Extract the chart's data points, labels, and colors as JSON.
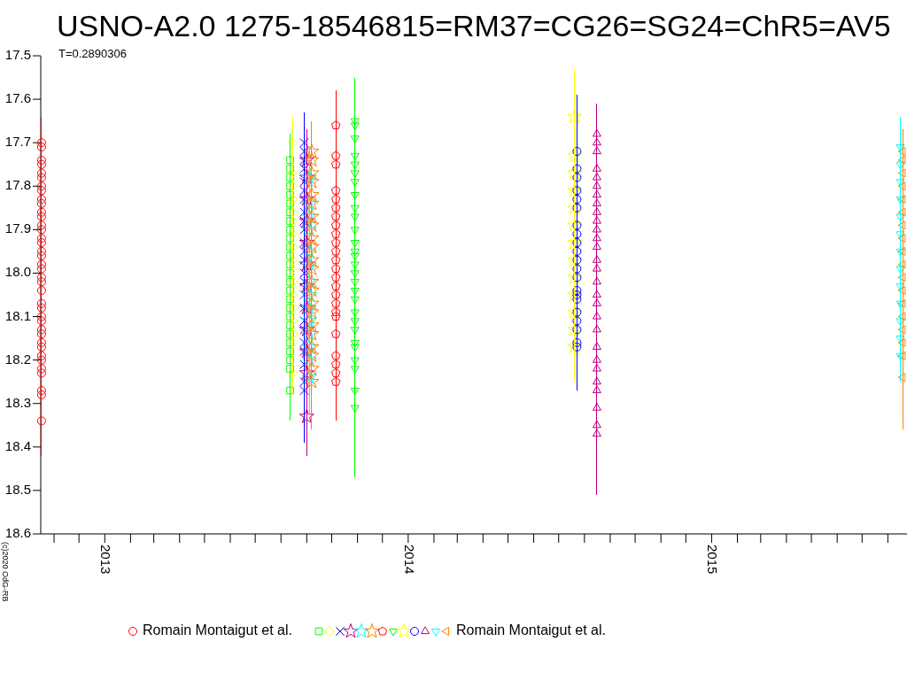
{
  "chart_data": {
    "type": "scatter",
    "title": "USNO-A2.0 1275-18546815=RM37=CG26=SG24=ChR5=AV5",
    "subtitle": "T=0.2890306",
    "annotations": [
      "(c)2020 OdG-RB"
    ],
    "legend": "bottom",
    "xlim": [
      "2012-10-16",
      "2015-08-24"
    ],
    "xticks": [
      {
        "value": "2012-11",
        "label": null
      },
      {
        "value": "2012-12",
        "label": null
      },
      "2013",
      {
        "value": "2013-02",
        "label": null
      },
      {
        "value": "2013-03",
        "label": null
      },
      {
        "value": "2013-04",
        "label": null
      },
      {
        "value": "2013-05",
        "label": null
      },
      {
        "value": "2013-06",
        "label": null
      },
      {
        "value": "2013-07",
        "label": null
      },
      {
        "value": "2013-08",
        "label": null
      },
      {
        "value": "2013-09",
        "label": null
      },
      {
        "value": "2013-10",
        "label": null
      },
      {
        "value": "2013-11",
        "label": null
      },
      {
        "value": "2013-12",
        "label": null
      },
      "2014",
      {
        "value": "2014-02",
        "label": null
      },
      {
        "value": "2014-03",
        "label": null
      },
      {
        "value": "2014-04",
        "label": null
      },
      {
        "value": "2014-05",
        "label": null
      },
      {
        "value": "2014-06",
        "label": null
      },
      {
        "value": "2014-07",
        "label": null
      },
      {
        "value": "2014-08",
        "label": null
      },
      {
        "value": "2014-09",
        "label": null
      },
      {
        "value": "2014-10",
        "label": null
      },
      {
        "value": "2014-11",
        "label": null
      },
      {
        "value": "2014-12",
        "label": null
      },
      "2015",
      {
        "value": "2015-02",
        "label": null
      },
      {
        "value": "2015-03",
        "label": null
      },
      {
        "value": "2015-04",
        "label": null
      },
      {
        "value": "2015-05",
        "label": null
      },
      {
        "value": "2015-06",
        "label": null
      },
      {
        "value": "2015-07",
        "label": null
      },
      {
        "value": "2015-08",
        "label": null
      }
    ],
    "ylim": [
      18.6,
      17.5
    ],
    "yticks": [
      17.5,
      17.6,
      17.7,
      17.8,
      17.9,
      {
        "value": 18,
        "label": "18.0"
      },
      18.1,
      18.2,
      18.3,
      18.4,
      18.5,
      18.6
    ],
    "series": [
      {
        "name": "Romain Montaigut et al.",
        "color": "#ff0000",
        "marker": "circle",
        "x": [
          "2012-10-17",
          "2012-10-17",
          "2012-10-17",
          "2012-10-17",
          "2012-10-17",
          "2012-10-17",
          "2012-10-17",
          "2012-10-17",
          "2012-10-17",
          "2012-10-17",
          "2012-10-17",
          "2012-10-17",
          "2012-10-17",
          "2012-10-17",
          "2012-10-17",
          "2012-10-17",
          "2012-10-17",
          "2012-10-17",
          "2012-10-17",
          "2012-10-17",
          "2012-10-17",
          "2012-10-17",
          "2012-10-17",
          "2012-10-17",
          "2012-10-17",
          "2012-10-17",
          "2012-10-17",
          "2012-10-17",
          "2012-10-17",
          "2012-10-17",
          "2012-10-17",
          "2012-10-17",
          "2012-10-17",
          "2012-10-17",
          "2012-10-17",
          "2012-10-17",
          "2012-10-17",
          "2012-10-17"
        ],
        "values": [
          17.7,
          17.71,
          17.74,
          17.75,
          17.77,
          17.78,
          17.8,
          17.81,
          17.83,
          17.84,
          17.86,
          17.87,
          17.89,
          17.9,
          17.92,
          17.93,
          17.95,
          17.96,
          17.98,
          17.99,
          18.01,
          18.02,
          18.04,
          18.07,
          18.08,
          18.1,
          18.11,
          18.13,
          18.14,
          18.16,
          18.17,
          18.19,
          18.2,
          18.22,
          18.23,
          18.27,
          18.28,
          18.34
        ],
        "errors": [
          0.06,
          0.05,
          0.05,
          0.05,
          0.05,
          0.05,
          0.05,
          0.05,
          0.05,
          0.05,
          0.05,
          0.05,
          0.05,
          0.05,
          0.05,
          0.05,
          0.05,
          0.05,
          0.05,
          0.05,
          0.05,
          0.05,
          0.05,
          0.05,
          0.05,
          0.05,
          0.05,
          0.05,
          0.05,
          0.05,
          0.05,
          0.05,
          0.05,
          0.05,
          0.05,
          0.05,
          0.05,
          0.08
        ]
      },
      {
        "color": "#00ff00",
        "marker": "square",
        "x": [
          "2013-08-12",
          "2013-08-12",
          "2013-08-12",
          "2013-08-12",
          "2013-08-12",
          "2013-08-12",
          "2013-08-12",
          "2013-08-12",
          "2013-08-12",
          "2013-08-12",
          "2013-08-12",
          "2013-08-12",
          "2013-08-12",
          "2013-08-12",
          "2013-08-12",
          "2013-08-12",
          "2013-08-12",
          "2013-08-12",
          "2013-08-12",
          "2013-08-12",
          "2013-08-12",
          "2013-08-12",
          "2013-08-12",
          "2013-08-12",
          "2013-08-12",
          "2013-08-12"
        ],
        "values": [
          17.74,
          17.76,
          17.78,
          17.8,
          17.82,
          17.84,
          17.86,
          17.88,
          17.9,
          17.92,
          17.94,
          17.96,
          17.98,
          18.0,
          18.02,
          18.04,
          18.06,
          18.08,
          18.1,
          18.12,
          18.14,
          18.16,
          18.18,
          18.2,
          18.22,
          18.27
        ],
        "errors": [
          0.06,
          0.05,
          0.05,
          0.05,
          0.05,
          0.05,
          0.05,
          0.05,
          0.05,
          0.05,
          0.05,
          0.05,
          0.05,
          0.05,
          0.05,
          0.05,
          0.05,
          0.05,
          0.05,
          0.05,
          0.05,
          0.05,
          0.05,
          0.05,
          0.05,
          0.07
        ]
      },
      {
        "color": "#ffff00",
        "marker": "diamond",
        "x": [
          "2013-08-15",
          "2013-08-15",
          "2013-08-15",
          "2013-08-15",
          "2013-08-15",
          "2013-08-15",
          "2013-08-15",
          "2013-08-15",
          "2013-08-15",
          "2013-08-15",
          "2013-08-15",
          "2013-08-15",
          "2013-08-15",
          "2013-08-15",
          "2013-08-15",
          "2013-08-15",
          "2013-08-15"
        ],
        "values": [
          17.7,
          17.77,
          17.8,
          17.83,
          17.86,
          17.88,
          17.91,
          17.94,
          17.97,
          17.99,
          18.02,
          18.05,
          18.08,
          18.11,
          18.14,
          18.16,
          18.23
        ],
        "errors": [
          0.06,
          0.05,
          0.05,
          0.05,
          0.05,
          0.05,
          0.05,
          0.05,
          0.05,
          0.05,
          0.05,
          0.05,
          0.05,
          0.05,
          0.05,
          0.05,
          0.05
        ]
      },
      {
        "color": "#0000ff",
        "marker": "cross",
        "x": [
          "2013-08-29",
          "2013-08-29",
          "2013-08-29",
          "2013-08-29",
          "2013-08-29",
          "2013-08-29",
          "2013-08-29",
          "2013-08-29",
          "2013-08-29",
          "2013-08-29",
          "2013-08-29",
          "2013-08-29",
          "2013-08-29",
          "2013-08-29",
          "2013-08-29",
          "2013-08-29",
          "2013-08-29",
          "2013-08-29",
          "2013-08-29",
          "2013-08-29",
          "2013-08-29",
          "2013-08-29",
          "2013-08-29",
          "2013-08-29"
        ],
        "values": [
          17.7,
          17.72,
          17.74,
          17.76,
          17.79,
          17.81,
          17.83,
          17.86,
          17.88,
          17.9,
          17.93,
          17.95,
          17.97,
          18.0,
          18.02,
          18.05,
          18.08,
          18.11,
          18.13,
          18.16,
          18.18,
          18.21,
          18.25,
          18.27
        ],
        "errors": [
          0.07,
          0.05,
          0.05,
          0.05,
          0.05,
          0.05,
          0.05,
          0.05,
          0.05,
          0.05,
          0.05,
          0.05,
          0.05,
          0.05,
          0.05,
          0.05,
          0.05,
          0.05,
          0.05,
          0.05,
          0.05,
          0.05,
          0.05,
          0.12
        ]
      },
      {
        "color": "#bf0080",
        "marker": "star",
        "x": [
          "2013-09-01",
          "2013-09-01",
          "2013-09-01",
          "2013-09-01",
          "2013-09-01",
          "2013-09-01",
          "2013-09-01",
          "2013-09-01",
          "2013-09-01",
          "2013-09-01",
          "2013-09-01",
          "2013-09-01"
        ],
        "values": [
          17.74,
          17.78,
          17.83,
          17.88,
          17.93,
          17.98,
          18.03,
          18.08,
          18.13,
          18.18,
          18.23,
          18.33
        ],
        "errors": [
          0.07,
          0.05,
          0.05,
          0.05,
          0.05,
          0.05,
          0.05,
          0.05,
          0.05,
          0.05,
          0.05,
          0.09
        ]
      },
      {
        "color": "#00ffff",
        "marker": "star",
        "x": [
          "2013-09-04",
          "2013-09-04",
          "2013-09-04",
          "2013-09-04",
          "2013-09-04",
          "2013-09-04",
          "2013-09-04",
          "2013-09-04",
          "2013-09-04",
          "2013-09-04",
          "2013-09-04",
          "2013-09-04",
          "2013-09-04",
          "2013-09-04"
        ],
        "values": [
          17.78,
          17.84,
          17.87,
          17.9,
          17.95,
          17.98,
          18.02,
          18.05,
          18.08,
          18.11,
          18.14,
          18.17,
          18.2,
          18.24
        ],
        "errors": [
          0.07,
          0.05,
          0.05,
          0.05,
          0.05,
          0.05,
          0.05,
          0.05,
          0.05,
          0.05,
          0.05,
          0.05,
          0.05,
          0.08
        ]
      },
      {
        "color": "#ff8000",
        "marker": "star",
        "x": [
          "2013-09-07",
          "2013-09-07",
          "2013-09-07",
          "2013-09-07",
          "2013-09-07",
          "2013-09-07",
          "2013-09-07",
          "2013-09-07",
          "2013-09-07",
          "2013-09-07",
          "2013-09-07",
          "2013-09-07",
          "2013-09-07",
          "2013-09-07",
          "2013-09-07",
          "2013-09-07",
          "2013-09-07",
          "2013-09-07",
          "2013-09-07",
          "2013-09-07",
          "2013-09-07",
          "2013-09-07"
        ],
        "values": [
          17.72,
          17.74,
          17.77,
          17.79,
          17.82,
          17.84,
          17.87,
          17.89,
          17.92,
          17.94,
          17.97,
          17.99,
          18.02,
          18.04,
          18.07,
          18.09,
          18.12,
          18.14,
          18.17,
          18.19,
          18.22,
          18.25
        ],
        "errors": [
          0.07,
          0.05,
          0.05,
          0.05,
          0.05,
          0.05,
          0.05,
          0.05,
          0.05,
          0.05,
          0.05,
          0.05,
          0.05,
          0.05,
          0.05,
          0.05,
          0.05,
          0.05,
          0.05,
          0.05,
          0.05,
          0.11
        ]
      },
      {
        "color": "#ff0000",
        "x": [
          "2013-10-06",
          "2013-10-06",
          "2013-10-06",
          "2013-10-06",
          "2013-10-06",
          "2013-10-06",
          "2013-10-06",
          "2013-10-06",
          "2013-10-06",
          "2013-10-06",
          "2013-10-06",
          "2013-10-06",
          "2013-10-06",
          "2013-10-06",
          "2013-10-06",
          "2013-10-06",
          "2013-10-06",
          "2013-10-06",
          "2013-10-06",
          "2013-10-06",
          "2013-10-06",
          "2013-10-06",
          "2013-10-06",
          "2013-10-06"
        ],
        "values": [
          17.66,
          17.73,
          17.75,
          17.81,
          17.83,
          17.85,
          17.87,
          17.89,
          17.91,
          17.93,
          17.95,
          17.97,
          17.99,
          18.01,
          18.03,
          18.05,
          18.07,
          18.09,
          18.1,
          18.14,
          18.19,
          18.21,
          18.23,
          18.25
        ],
        "errors": [
          0.08,
          0.05,
          0.05,
          0.05,
          0.05,
          0.05,
          0.05,
          0.05,
          0.05,
          0.05,
          0.05,
          0.05,
          0.05,
          0.05,
          0.05,
          0.05,
          0.05,
          0.05,
          0.05,
          0.05,
          0.05,
          0.05,
          0.05,
          0.09
        ]
      },
      {
        "color": "#00ff00",
        "marker": "triangle-down",
        "x": [
          "2013-10-29",
          "2013-10-29",
          "2013-10-29",
          "2013-10-29",
          "2013-10-29",
          "2013-10-29",
          "2013-10-29",
          "2013-10-29",
          "2013-10-29",
          "2013-10-29",
          "2013-10-29",
          "2013-10-29",
          "2013-10-29",
          "2013-10-29",
          "2013-10-29",
          "2013-10-29",
          "2013-10-29",
          "2013-10-29",
          "2013-10-29",
          "2013-10-29",
          "2013-10-29",
          "2013-10-29",
          "2013-10-29",
          "2013-10-29",
          "2013-10-29",
          "2013-10-29",
          "2013-10-29",
          "2013-10-29"
        ],
        "values": [
          17.65,
          17.66,
          17.69,
          17.73,
          17.75,
          17.77,
          17.79,
          17.82,
          17.85,
          17.87,
          17.9,
          17.93,
          17.95,
          17.96,
          17.98,
          18.0,
          18.02,
          18.04,
          18.06,
          18.09,
          18.11,
          18.13,
          18.16,
          18.17,
          18.2,
          18.22,
          18.27,
          18.31
        ],
        "errors": [
          0.1,
          0.06,
          0.06,
          0.06,
          0.06,
          0.06,
          0.06,
          0.06,
          0.06,
          0.06,
          0.06,
          0.06,
          0.06,
          0.06,
          0.06,
          0.06,
          0.06,
          0.06,
          0.06,
          0.06,
          0.06,
          0.06,
          0.06,
          0.06,
          0.06,
          0.06,
          0.06,
          0.16
        ]
      },
      {
        "color": "#ffff00",
        "marker": "star",
        "x": [
          "2014-07-20",
          "2014-07-20",
          "2014-07-20",
          "2014-07-20",
          "2014-07-20",
          "2014-07-20",
          "2014-07-20",
          "2014-07-20",
          "2014-07-20",
          "2014-07-20",
          "2014-07-20",
          "2014-07-20",
          "2014-07-20"
        ],
        "values": [
          17.64,
          17.73,
          17.77,
          17.81,
          17.85,
          17.89,
          17.93,
          17.97,
          18.01,
          18.05,
          18.09,
          18.13,
          18.17
        ],
        "errors": [
          0.11,
          0.06,
          0.06,
          0.06,
          0.06,
          0.06,
          0.06,
          0.06,
          0.06,
          0.06,
          0.06,
          0.06,
          0.08
        ]
      },
      {
        "color": "#0000ff",
        "marker": "circle",
        "x": [
          "2014-07-23",
          "2014-07-23",
          "2014-07-23",
          "2014-07-23",
          "2014-07-23",
          "2014-07-23",
          "2014-07-23",
          "2014-07-23",
          "2014-07-23",
          "2014-07-23",
          "2014-07-23",
          "2014-07-23",
          "2014-07-23",
          "2014-07-23",
          "2014-07-23",
          "2014-07-23",
          "2014-07-23",
          "2014-07-23",
          "2014-07-23",
          "2014-07-23",
          "2014-07-23"
        ],
        "values": [
          17.72,
          17.76,
          17.78,
          17.81,
          17.83,
          17.85,
          17.89,
          17.91,
          17.93,
          17.95,
          17.97,
          17.99,
          18.01,
          18.04,
          18.05,
          18.06,
          18.09,
          18.11,
          18.13,
          18.16,
          18.17
        ],
        "errors": [
          0.13,
          0.06,
          0.06,
          0.06,
          0.06,
          0.06,
          0.06,
          0.06,
          0.06,
          0.06,
          0.06,
          0.06,
          0.06,
          0.06,
          0.06,
          0.06,
          0.06,
          0.06,
          0.06,
          0.06,
          0.1
        ]
      },
      {
        "color": "#bf0080",
        "marker": "triangle",
        "x": [
          "2014-08-16",
          "2014-08-16",
          "2014-08-16",
          "2014-08-16",
          "2014-08-16",
          "2014-08-16",
          "2014-08-16",
          "2014-08-16",
          "2014-08-16",
          "2014-08-16",
          "2014-08-16",
          "2014-08-16",
          "2014-08-16",
          "2014-08-16",
          "2014-08-16",
          "2014-08-16",
          "2014-08-16",
          "2014-08-16",
          "2014-08-16",
          "2014-08-16",
          "2014-08-16",
          "2014-08-16",
          "2014-08-16",
          "2014-08-16",
          "2014-08-16",
          "2014-08-16",
          "2014-08-16",
          "2014-08-16"
        ],
        "values": [
          17.68,
          17.7,
          17.72,
          17.76,
          17.78,
          17.8,
          17.82,
          17.84,
          17.86,
          17.88,
          17.9,
          17.92,
          17.94,
          17.97,
          17.99,
          18.02,
          18.05,
          18.07,
          18.1,
          18.13,
          18.17,
          18.2,
          18.22,
          18.25,
          18.27,
          18.31,
          18.35,
          18.37
        ],
        "errors": [
          0.07,
          0.06,
          0.06,
          0.06,
          0.06,
          0.06,
          0.06,
          0.06,
          0.06,
          0.06,
          0.06,
          0.06,
          0.06,
          0.06,
          0.06,
          0.06,
          0.06,
          0.06,
          0.06,
          0.06,
          0.06,
          0.06,
          0.06,
          0.06,
          0.06,
          0.06,
          0.06,
          0.14
        ]
      },
      {
        "color": "#00ffff",
        "marker": "triangle-down",
        "x": [
          "2015-08-16",
          "2015-08-16",
          "2015-08-16",
          "2015-08-16",
          "2015-08-16",
          "2015-08-16",
          "2015-08-16",
          "2015-08-16",
          "2015-08-16",
          "2015-08-16",
          "2015-08-16",
          "2015-08-16",
          "2015-08-16"
        ],
        "values": [
          17.71,
          17.75,
          17.79,
          17.83,
          17.87,
          17.91,
          17.95,
          17.99,
          18.03,
          18.07,
          18.11,
          18.15,
          18.19
        ],
        "errors": [
          0.07,
          0.05,
          0.05,
          0.05,
          0.05,
          0.05,
          0.05,
          0.05,
          0.05,
          0.05,
          0.05,
          0.05,
          0.06
        ]
      },
      {
        "name": "Romain Montaigut et al.",
        "color": "#ff8000",
        "marker": "triangle-left",
        "x": [
          "2015-08-19",
          "2015-08-19",
          "2015-08-19",
          "2015-08-19",
          "2015-08-19",
          "2015-08-19",
          "2015-08-19",
          "2015-08-19",
          "2015-08-19",
          "2015-08-19",
          "2015-08-19",
          "2015-08-19",
          "2015-08-19",
          "2015-08-19",
          "2015-08-19",
          "2015-08-19",
          "2015-08-19",
          "2015-08-19"
        ],
        "values": [
          17.72,
          17.74,
          17.77,
          17.8,
          17.83,
          17.86,
          17.89,
          17.92,
          17.95,
          17.98,
          18.01,
          18.04,
          18.07,
          18.1,
          18.13,
          18.16,
          18.19,
          18.24
        ],
        "errors": [
          0.05,
          0.05,
          0.05,
          0.05,
          0.05,
          0.05,
          0.05,
          0.05,
          0.05,
          0.05,
          0.05,
          0.05,
          0.05,
          0.05,
          0.05,
          0.05,
          0.05,
          0.12
        ]
      }
    ]
  }
}
